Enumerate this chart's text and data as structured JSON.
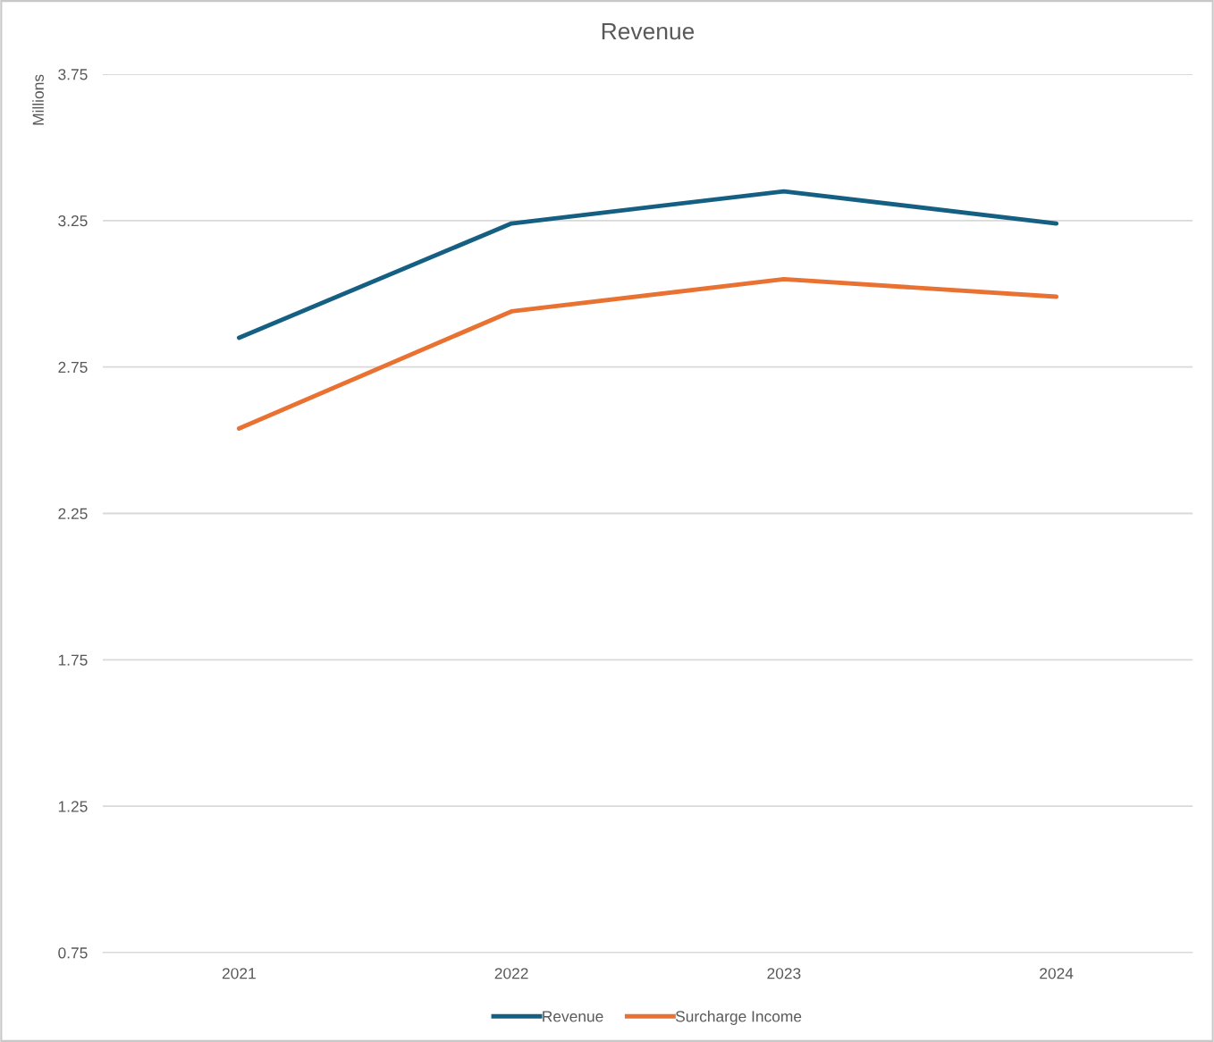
{
  "chart_data": {
    "type": "line",
    "title": "Revenue",
    "ylabel": "Millions",
    "categories": [
      "2021",
      "2022",
      "2023",
      "2024"
    ],
    "series": [
      {
        "name": "Revenue",
        "color": "#156082",
        "values": [
          2.85,
          3.24,
          3.35,
          3.24
        ]
      },
      {
        "name": "Surcharge Income",
        "color": "#e97132",
        "values": [
          2.54,
          2.94,
          3.05,
          2.99
        ]
      }
    ],
    "ylim": [
      0.75,
      3.75
    ],
    "yticks": [
      0.75,
      1.25,
      1.75,
      2.25,
      2.75,
      3.25,
      3.75
    ],
    "grid": "y",
    "legend": "bottom",
    "marker": "none",
    "line_style": "solid"
  }
}
